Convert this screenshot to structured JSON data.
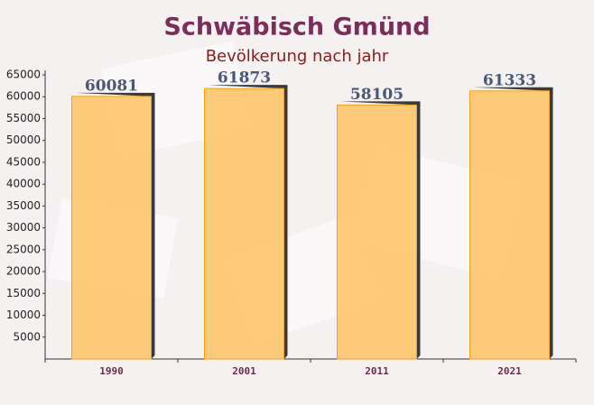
{
  "chart_data": {
    "type": "bar",
    "title": "Schwäbisch Gmünd",
    "subtitle": "Bevölkerung nach jahr",
    "categories": [
      "1990",
      "2001",
      "2011",
      "2021"
    ],
    "values": [
      60081,
      61873,
      58105,
      61333
    ],
    "color": "#fdc364",
    "ylim": [
      0,
      65000
    ],
    "yticks": [
      5000,
      10000,
      15000,
      20000,
      25000,
      30000,
      35000,
      40000,
      45000,
      50000,
      55000,
      60000,
      65000
    ]
  }
}
